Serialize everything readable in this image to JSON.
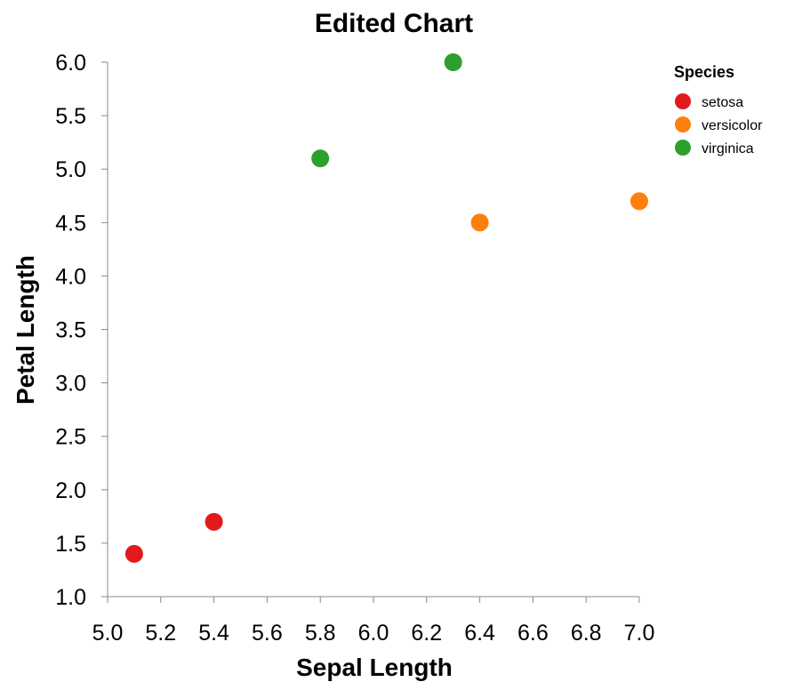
{
  "chart_data": {
    "type": "scatter",
    "title": "Edited Chart",
    "xlabel": "Sepal Length",
    "ylabel": "Petal Length",
    "xlim": [
      5.0,
      7.0
    ],
    "ylim": [
      1.0,
      6.0
    ],
    "x_ticks": [
      "5.0",
      "5.2",
      "5.4",
      "5.6",
      "5.8",
      "6.0",
      "6.2",
      "6.4",
      "6.6",
      "6.8",
      "7.0"
    ],
    "y_ticks": [
      "1.0",
      "1.5",
      "2.0",
      "2.5",
      "3.0",
      "3.5",
      "4.0",
      "4.5",
      "5.0",
      "5.5",
      "6.0"
    ],
    "grid": false,
    "legend": {
      "title": "Species",
      "position": "top-right"
    },
    "series": [
      {
        "name": "setosa",
        "color": "#e31a1c",
        "points": [
          {
            "x": 5.1,
            "y": 1.4
          },
          {
            "x": 5.4,
            "y": 1.7
          }
        ]
      },
      {
        "name": "versicolor",
        "color": "#ff7f0e",
        "points": [
          {
            "x": 6.4,
            "y": 4.5
          },
          {
            "x": 7.0,
            "y": 4.7
          }
        ]
      },
      {
        "name": "virginica",
        "color": "#2ca02c",
        "points": [
          {
            "x": 5.8,
            "y": 5.1
          },
          {
            "x": 6.3,
            "y": 6.0
          }
        ]
      }
    ]
  }
}
